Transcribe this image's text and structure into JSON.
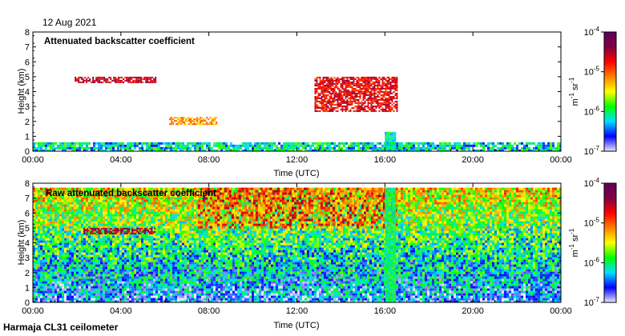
{
  "header": {
    "date": "12 Aug 2021"
  },
  "footer": {
    "instrument": "Harmaja CL31 ceilometer"
  },
  "colorbar": {
    "unit_parts": [
      "m",
      "-1",
      " sr",
      "-1"
    ],
    "ticks": [
      {
        "label": "10",
        "exp": "-4",
        "value": -4
      },
      {
        "label": "10",
        "exp": "-5",
        "value": -5
      },
      {
        "label": "10",
        "exp": "-6",
        "value": -6
      },
      {
        "label": "10",
        "exp": "-7",
        "value": -7
      }
    ],
    "scale": "log",
    "range": [
      -7,
      -4
    ],
    "colors": [
      "#e8e8ff",
      "#0000ff",
      "#00e0ff",
      "#00ff00",
      "#ffff00",
      "#ff8000",
      "#ff0000",
      "#800040",
      "#600060"
    ]
  },
  "chart_data": [
    {
      "type": "heatmap",
      "title": "Attenuated backscatter coefficient",
      "xlabel": "Time (UTC)",
      "ylabel": "Height (km)",
      "x_ticks": [
        "00:00",
        "04:00",
        "08:00",
        "12:00",
        "16:00",
        "20:00",
        "00:00"
      ],
      "y_ticks": [
        "0",
        "1",
        "2",
        "3",
        "4",
        "5",
        "6",
        "7",
        "8"
      ],
      "xlim_hours": [
        0,
        24
      ],
      "ylim_km": [
        0,
        8
      ],
      "features": [
        {
          "name": "boundary layer",
          "hours": [
            0,
            24
          ],
          "km": [
            0,
            0.6
          ],
          "level": -6.3
        },
        {
          "name": "cloud layer",
          "hours": [
            1.9,
            5.6
          ],
          "km": [
            4.6,
            5.0
          ],
          "level": -4.6
        },
        {
          "name": "cloud layer",
          "hours": [
            6.2,
            8.4
          ],
          "km": [
            1.8,
            2.3
          ],
          "level": -5.2
        },
        {
          "name": "cloud patches",
          "hours": [
            12.8,
            16.6
          ],
          "km": [
            2.6,
            5.0
          ],
          "level": -4.7
        },
        {
          "name": "precipitation",
          "hours": [
            16.0,
            16.5
          ],
          "km": [
            0,
            1.3
          ],
          "level": -6.1
        }
      ]
    },
    {
      "type": "heatmap",
      "title": "Raw attenuated backscatter coefficient",
      "xlabel": "Time (UTC)",
      "ylabel": "Height (km)",
      "x_ticks": [
        "00:00",
        "04:00",
        "08:00",
        "12:00",
        "16:00",
        "20:00",
        "00:00"
      ],
      "y_ticks": [
        "0",
        "1",
        "2",
        "3",
        "4",
        "5",
        "6",
        "7",
        "8"
      ],
      "xlim_hours": [
        0,
        24
      ],
      "ylim_km": [
        0,
        8
      ],
      "features": [
        {
          "name": "noise field",
          "hours": [
            0,
            24
          ],
          "km": [
            0,
            7.7
          ],
          "level": -5.8
        },
        {
          "name": "high noise",
          "hours": [
            7.5,
            16.6
          ],
          "km": [
            5.0,
            7.7
          ],
          "level": -4.8
        },
        {
          "name": "cloud layer",
          "hours": [
            2.3,
            5.6
          ],
          "km": [
            4.6,
            5.0
          ],
          "level": -4.5
        },
        {
          "name": "precipitation",
          "hours": [
            16.0,
            16.5
          ],
          "km": [
            0,
            7.7
          ],
          "level": -6.0
        }
      ]
    }
  ]
}
